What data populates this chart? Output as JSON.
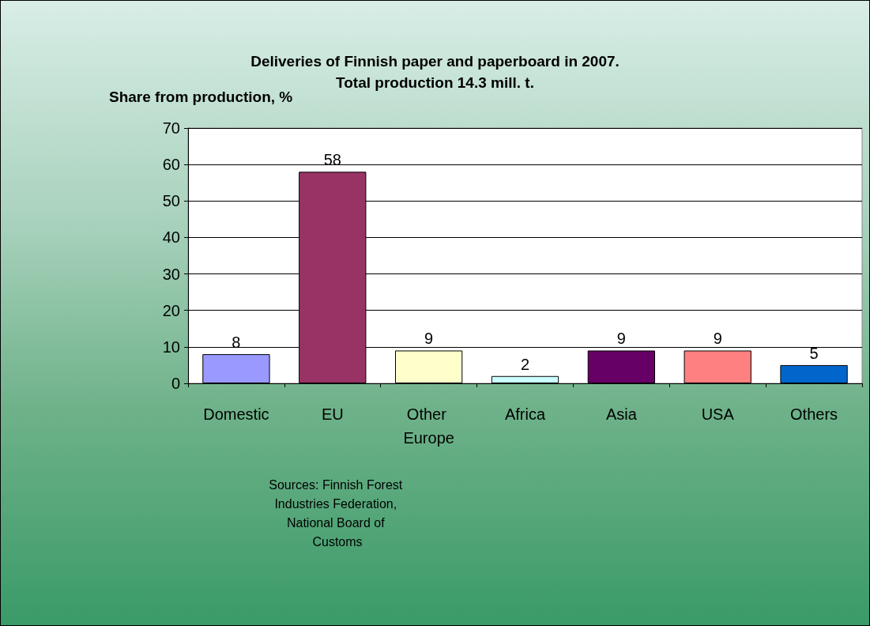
{
  "chart_data": {
    "type": "bar",
    "title": "Deliveries of Finnish paper and paperboard in 2007.",
    "subtitle": "Total production 14.3 mill. t.",
    "ylabel": "Share from production, %",
    "categories": [
      "Domestic",
      "EU",
      "Other Europe",
      "Africa",
      "Asia",
      "USA",
      "Others"
    ],
    "values": [
      8,
      58,
      9,
      2,
      9,
      9,
      5
    ],
    "colors": [
      "#9999ff",
      "#993366",
      "#ffffcc",
      "#ccffff",
      "#660066",
      "#ff8080",
      "#0066cc"
    ],
    "ylim": [
      0,
      70
    ],
    "yticks": [
      0,
      10,
      20,
      30,
      40,
      50,
      60,
      70
    ],
    "grid": "y",
    "data_labels": true,
    "annotations": [
      "Sources: Finnish Forest Industries Federation, National Board of Customs"
    ]
  }
}
